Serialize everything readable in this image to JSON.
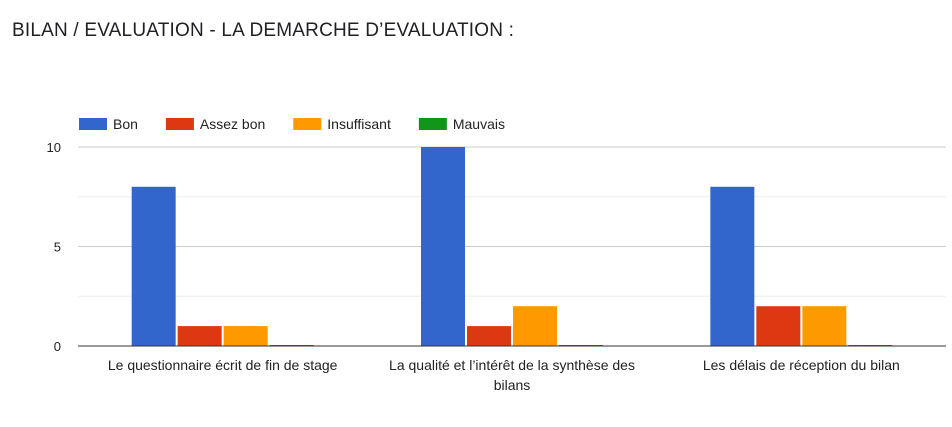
{
  "page": {
    "title": "BILAN / EVALUATION - LA DEMARCHE D’EVALUATION :"
  },
  "chart_data": {
    "type": "bar",
    "categories": [
      [
        "Le questionnaire écrit de fin de stage"
      ],
      [
        "La qualité et l’intérêt de la synthèse des",
        "bilans"
      ],
      [
        "Les délais de réception du bilan"
      ]
    ],
    "series": [
      {
        "name": "Bon",
        "color": "#3366cc",
        "values": [
          8,
          10,
          8
        ]
      },
      {
        "name": "Assez bon",
        "color": "#dc3912",
        "values": [
          1,
          1,
          2
        ]
      },
      {
        "name": "Insuffisant",
        "color": "#ff9900",
        "values": [
          1,
          2,
          2
        ]
      },
      {
        "name": "Mauvais",
        "color": "#109618",
        "values": [
          0,
          0,
          0
        ]
      }
    ],
    "yticks": [
      0,
      5,
      10
    ],
    "ylim": [
      0,
      10
    ],
    "grid": true,
    "legend_position": "top-left"
  }
}
